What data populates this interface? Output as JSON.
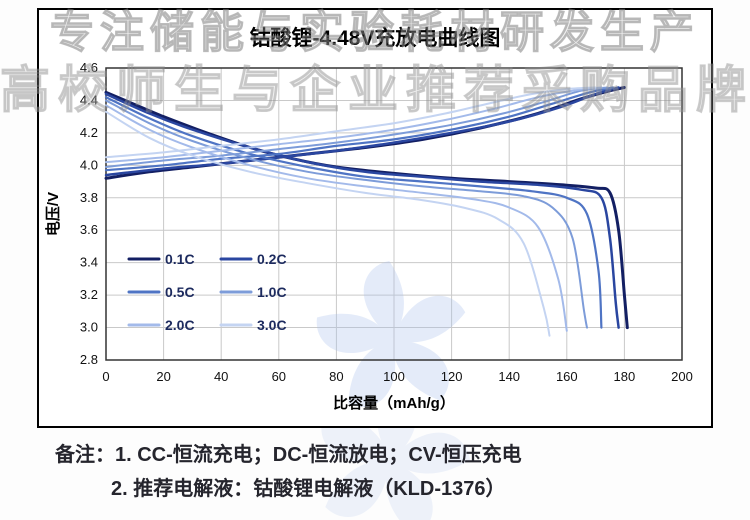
{
  "watermark": {
    "line1": "专注储能与实验耗材研发生产",
    "line2": "高校师生与企业推荐采购品牌"
  },
  "notes": {
    "line1": "备注：1. CC-恒流充电；DC-恒流放电；CV-恒压充电",
    "line2": "2. 推荐电解液：钴酸锂电解液（KLD-1376）"
  },
  "chart_data": {
    "type": "line",
    "title": "钴酸锂-4.48V充放电曲线图",
    "xlabel": "比容量（mAh/g）",
    "ylabel": "电压/V",
    "xlim": [
      0,
      200
    ],
    "ylim": [
      2.8,
      4.6
    ],
    "xticks": [
      0,
      20,
      40,
      60,
      80,
      100,
      120,
      140,
      160,
      180,
      200
    ],
    "yticks": [
      2.8,
      3.0,
      3.2,
      3.4,
      3.6,
      3.8,
      4.0,
      4.2,
      4.4,
      4.6
    ],
    "grid": true,
    "grid_color": "#c9c9c9",
    "legend_position": "inside-left",
    "watermark_color": "#a9c0ec",
    "series": [
      {
        "name": "0.1C",
        "color": "#131f63",
        "width": 3,
        "charge": [
          [
            0,
            3.92
          ],
          [
            15,
            3.96
          ],
          [
            30,
            3.99
          ],
          [
            50,
            4.03
          ],
          [
            70,
            4.07
          ],
          [
            90,
            4.11
          ],
          [
            110,
            4.16
          ],
          [
            130,
            4.23
          ],
          [
            150,
            4.32
          ],
          [
            165,
            4.41
          ],
          [
            175,
            4.46
          ],
          [
            180,
            4.48
          ]
        ],
        "discharge": [
          [
            0,
            4.45
          ],
          [
            8,
            4.39
          ],
          [
            20,
            4.3
          ],
          [
            35,
            4.2
          ],
          [
            50,
            4.11
          ],
          [
            65,
            4.04
          ],
          [
            80,
            3.99
          ],
          [
            100,
            3.95
          ],
          [
            120,
            3.92
          ],
          [
            140,
            3.9
          ],
          [
            158,
            3.88
          ],
          [
            170,
            3.86
          ],
          [
            175,
            3.83
          ],
          [
            178,
            3.6
          ],
          [
            180,
            3.2
          ],
          [
            181,
            3.0
          ]
        ]
      },
      {
        "name": "0.2C",
        "color": "#2a46a0",
        "width": 2.5,
        "charge": [
          [
            0,
            3.94
          ],
          [
            20,
            3.98
          ],
          [
            40,
            4.01
          ],
          [
            60,
            4.05
          ],
          [
            80,
            4.09
          ],
          [
            100,
            4.14
          ],
          [
            120,
            4.2
          ],
          [
            140,
            4.27
          ],
          [
            158,
            4.36
          ],
          [
            170,
            4.44
          ],
          [
            178,
            4.48
          ]
        ],
        "discharge": [
          [
            0,
            4.44
          ],
          [
            15,
            4.32
          ],
          [
            30,
            4.22
          ],
          [
            50,
            4.11
          ],
          [
            70,
            4.02
          ],
          [
            90,
            3.96
          ],
          [
            110,
            3.93
          ],
          [
            130,
            3.9
          ],
          [
            150,
            3.88
          ],
          [
            165,
            3.85
          ],
          [
            172,
            3.8
          ],
          [
            175,
            3.55
          ],
          [
            177,
            3.15
          ],
          [
            178,
            3.0
          ]
        ]
      },
      {
        "name": "0.5C",
        "color": "#4f74c4",
        "width": 2.2,
        "charge": [
          [
            0,
            3.97
          ],
          [
            20,
            4.0
          ],
          [
            40,
            4.04
          ],
          [
            60,
            4.07
          ],
          [
            80,
            4.12
          ],
          [
            100,
            4.16
          ],
          [
            120,
            4.22
          ],
          [
            140,
            4.3
          ],
          [
            155,
            4.38
          ],
          [
            168,
            4.45
          ],
          [
            176,
            4.48
          ]
        ],
        "discharge": [
          [
            0,
            4.42
          ],
          [
            15,
            4.29
          ],
          [
            30,
            4.18
          ],
          [
            50,
            4.07
          ],
          [
            70,
            3.99
          ],
          [
            90,
            3.93
          ],
          [
            110,
            3.9
          ],
          [
            130,
            3.87
          ],
          [
            148,
            3.84
          ],
          [
            160,
            3.8
          ],
          [
            167,
            3.7
          ],
          [
            171,
            3.35
          ],
          [
            172,
            3.0
          ]
        ]
      },
      {
        "name": "1.0C",
        "color": "#7d9cd9",
        "width": 2,
        "charge": [
          [
            0,
            3.99
          ],
          [
            20,
            4.03
          ],
          [
            40,
            4.06
          ],
          [
            60,
            4.1
          ],
          [
            80,
            4.14
          ],
          [
            100,
            4.19
          ],
          [
            120,
            4.25
          ],
          [
            138,
            4.32
          ],
          [
            152,
            4.39
          ],
          [
            165,
            4.46
          ],
          [
            174,
            4.48
          ]
        ],
        "discharge": [
          [
            0,
            4.4
          ],
          [
            15,
            4.26
          ],
          [
            30,
            4.15
          ],
          [
            50,
            4.04
          ],
          [
            70,
            3.96
          ],
          [
            90,
            3.91
          ],
          [
            110,
            3.87
          ],
          [
            130,
            3.84
          ],
          [
            145,
            3.81
          ],
          [
            155,
            3.74
          ],
          [
            162,
            3.55
          ],
          [
            166,
            3.1
          ],
          [
            167,
            3.0
          ]
        ]
      },
      {
        "name": "2.0C",
        "color": "#a3baea",
        "width": 2,
        "charge": [
          [
            0,
            4.02
          ],
          [
            20,
            4.05
          ],
          [
            40,
            4.09
          ],
          [
            60,
            4.13
          ],
          [
            80,
            4.17
          ],
          [
            100,
            4.22
          ],
          [
            118,
            4.28
          ],
          [
            135,
            4.35
          ],
          [
            150,
            4.42
          ],
          [
            162,
            4.46
          ],
          [
            172,
            4.48
          ]
        ],
        "discharge": [
          [
            0,
            4.37
          ],
          [
            15,
            4.22
          ],
          [
            30,
            4.11
          ],
          [
            50,
            4.0
          ],
          [
            70,
            3.92
          ],
          [
            90,
            3.87
          ],
          [
            110,
            3.83
          ],
          [
            128,
            3.79
          ],
          [
            140,
            3.74
          ],
          [
            150,
            3.62
          ],
          [
            157,
            3.3
          ],
          [
            160,
            2.98
          ]
        ]
      },
      {
        "name": "3.0C",
        "color": "#c4d4f2",
        "width": 2,
        "charge": [
          [
            0,
            4.05
          ],
          [
            20,
            4.08
          ],
          [
            40,
            4.12
          ],
          [
            60,
            4.16
          ],
          [
            80,
            4.21
          ],
          [
            100,
            4.26
          ],
          [
            118,
            4.32
          ],
          [
            135,
            4.39
          ],
          [
            148,
            4.44
          ],
          [
            160,
            4.47
          ],
          [
            170,
            4.48
          ]
        ],
        "discharge": [
          [
            0,
            4.33
          ],
          [
            15,
            4.17
          ],
          [
            30,
            4.06
          ],
          [
            50,
            3.96
          ],
          [
            70,
            3.89
          ],
          [
            90,
            3.83
          ],
          [
            108,
            3.79
          ],
          [
            124,
            3.74
          ],
          [
            136,
            3.67
          ],
          [
            145,
            3.52
          ],
          [
            152,
            3.12
          ],
          [
            154,
            2.95
          ]
        ]
      }
    ]
  }
}
